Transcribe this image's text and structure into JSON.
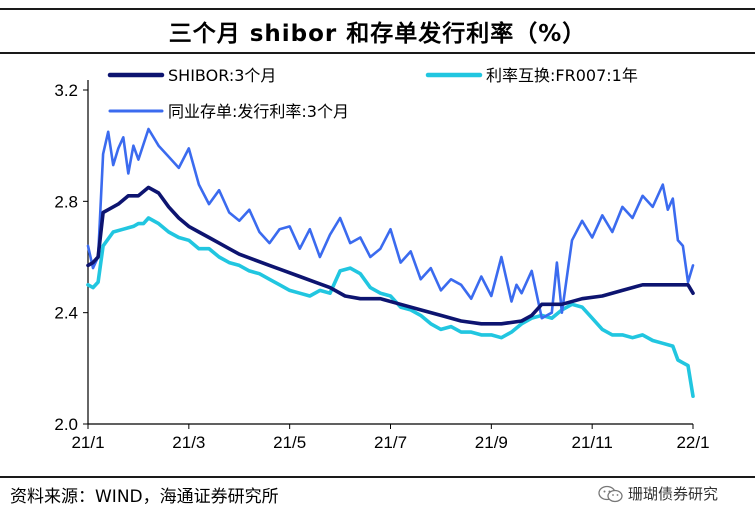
{
  "title": "三个月 shibor 和存单发行利率（%）",
  "source": "资料来源：WIND，海通证券研究所",
  "watermark": "珊瑚债券研究",
  "chart_data": {
    "type": "line",
    "x_ticks": [
      "21/1",
      "21/3",
      "21/5",
      "21/7",
      "21/9",
      "21/11",
      "22/1"
    ],
    "y_ticks": [
      "2.0",
      "2.4",
      "2.8",
      "3.2"
    ],
    "ylim": [
      2.0,
      3.2
    ],
    "x_range": [
      0,
      12
    ],
    "legend_position": "top",
    "series": [
      {
        "name": "SHIBOR:3个月",
        "color": "#0d1470",
        "x": [
          0.0,
          0.1,
          0.2,
          0.3,
          0.4,
          0.6,
          0.8,
          1.0,
          1.2,
          1.4,
          1.6,
          1.8,
          2.0,
          2.2,
          2.4,
          2.6,
          2.8,
          3.0,
          3.3,
          3.6,
          3.9,
          4.2,
          4.5,
          4.8,
          5.1,
          5.4,
          5.8,
          6.2,
          6.6,
          7.0,
          7.4,
          7.8,
          8.2,
          8.6,
          8.8,
          9.0,
          9.4,
          9.8,
          10.2,
          10.6,
          11.0,
          11.4,
          11.7,
          11.8,
          11.9,
          12.0
        ],
        "values": [
          2.57,
          2.58,
          2.6,
          2.76,
          2.77,
          2.79,
          2.82,
          2.82,
          2.85,
          2.83,
          2.78,
          2.74,
          2.71,
          2.69,
          2.67,
          2.65,
          2.63,
          2.61,
          2.59,
          2.57,
          2.55,
          2.53,
          2.51,
          2.49,
          2.46,
          2.45,
          2.45,
          2.43,
          2.41,
          2.39,
          2.37,
          2.36,
          2.36,
          2.37,
          2.39,
          2.43,
          2.43,
          2.45,
          2.46,
          2.48,
          2.5,
          2.5,
          2.5,
          2.5,
          2.5,
          2.47
        ]
      },
      {
        "name": "利率互换:FR007:1年",
        "color": "#21c6e0",
        "x": [
          0.0,
          0.1,
          0.2,
          0.3,
          0.5,
          0.7,
          0.9,
          1.0,
          1.1,
          1.2,
          1.4,
          1.6,
          1.8,
          2.0,
          2.2,
          2.4,
          2.6,
          2.8,
          3.0,
          3.2,
          3.4,
          3.6,
          3.8,
          4.0,
          4.2,
          4.4,
          4.6,
          4.8,
          5.0,
          5.2,
          5.4,
          5.6,
          5.8,
          6.0,
          6.2,
          6.4,
          6.6,
          6.8,
          7.0,
          7.2,
          7.4,
          7.6,
          7.8,
          8.0,
          8.2,
          8.4,
          8.6,
          8.8,
          9.0,
          9.2,
          9.4,
          9.6,
          9.8,
          10.0,
          10.2,
          10.4,
          10.6,
          10.8,
          11.0,
          11.2,
          11.4,
          11.6,
          11.7,
          11.8,
          11.9,
          12.0
        ],
        "values": [
          2.5,
          2.49,
          2.51,
          2.64,
          2.69,
          2.7,
          2.71,
          2.72,
          2.72,
          2.74,
          2.72,
          2.69,
          2.67,
          2.66,
          2.63,
          2.63,
          2.6,
          2.58,
          2.57,
          2.55,
          2.54,
          2.52,
          2.5,
          2.48,
          2.47,
          2.46,
          2.48,
          2.47,
          2.55,
          2.56,
          2.54,
          2.49,
          2.47,
          2.46,
          2.42,
          2.41,
          2.39,
          2.36,
          2.34,
          2.35,
          2.33,
          2.33,
          2.32,
          2.32,
          2.31,
          2.33,
          2.36,
          2.38,
          2.39,
          2.38,
          2.41,
          2.43,
          2.42,
          2.38,
          2.34,
          2.32,
          2.32,
          2.31,
          2.32,
          2.3,
          2.29,
          2.28,
          2.23,
          2.22,
          2.21,
          2.1
        ]
      },
      {
        "name": "同业存单:发行利率:3个月",
        "color": "#3b6bef",
        "x": [
          0.0,
          0.1,
          0.2,
          0.3,
          0.4,
          0.5,
          0.6,
          0.7,
          0.8,
          0.9,
          1.0,
          1.2,
          1.4,
          1.6,
          1.8,
          2.0,
          2.2,
          2.4,
          2.6,
          2.8,
          3.0,
          3.2,
          3.4,
          3.6,
          3.8,
          4.0,
          4.2,
          4.4,
          4.6,
          4.8,
          5.0,
          5.2,
          5.4,
          5.6,
          5.8,
          6.0,
          6.2,
          6.4,
          6.6,
          6.8,
          7.0,
          7.2,
          7.4,
          7.6,
          7.8,
          8.0,
          8.2,
          8.4,
          8.5,
          8.6,
          8.8,
          9.0,
          9.2,
          9.3,
          9.4,
          9.6,
          9.8,
          10.0,
          10.2,
          10.4,
          10.6,
          10.8,
          11.0,
          11.2,
          11.4,
          11.5,
          11.6,
          11.7,
          11.8,
          11.9,
          12.0
        ],
        "values": [
          2.64,
          2.56,
          2.6,
          2.97,
          3.05,
          2.93,
          2.99,
          3.03,
          2.9,
          3.0,
          2.95,
          3.06,
          3.0,
          2.96,
          2.92,
          2.99,
          2.86,
          2.79,
          2.84,
          2.76,
          2.73,
          2.77,
          2.69,
          2.65,
          2.7,
          2.71,
          2.63,
          2.7,
          2.6,
          2.68,
          2.74,
          2.65,
          2.67,
          2.6,
          2.63,
          2.7,
          2.58,
          2.62,
          2.52,
          2.56,
          2.48,
          2.52,
          2.5,
          2.45,
          2.53,
          2.46,
          2.6,
          2.44,
          2.5,
          2.47,
          2.55,
          2.38,
          2.4,
          2.58,
          2.4,
          2.66,
          2.73,
          2.67,
          2.75,
          2.69,
          2.78,
          2.74,
          2.82,
          2.78,
          2.86,
          2.77,
          2.81,
          2.66,
          2.64,
          2.51,
          2.57
        ]
      }
    ]
  }
}
